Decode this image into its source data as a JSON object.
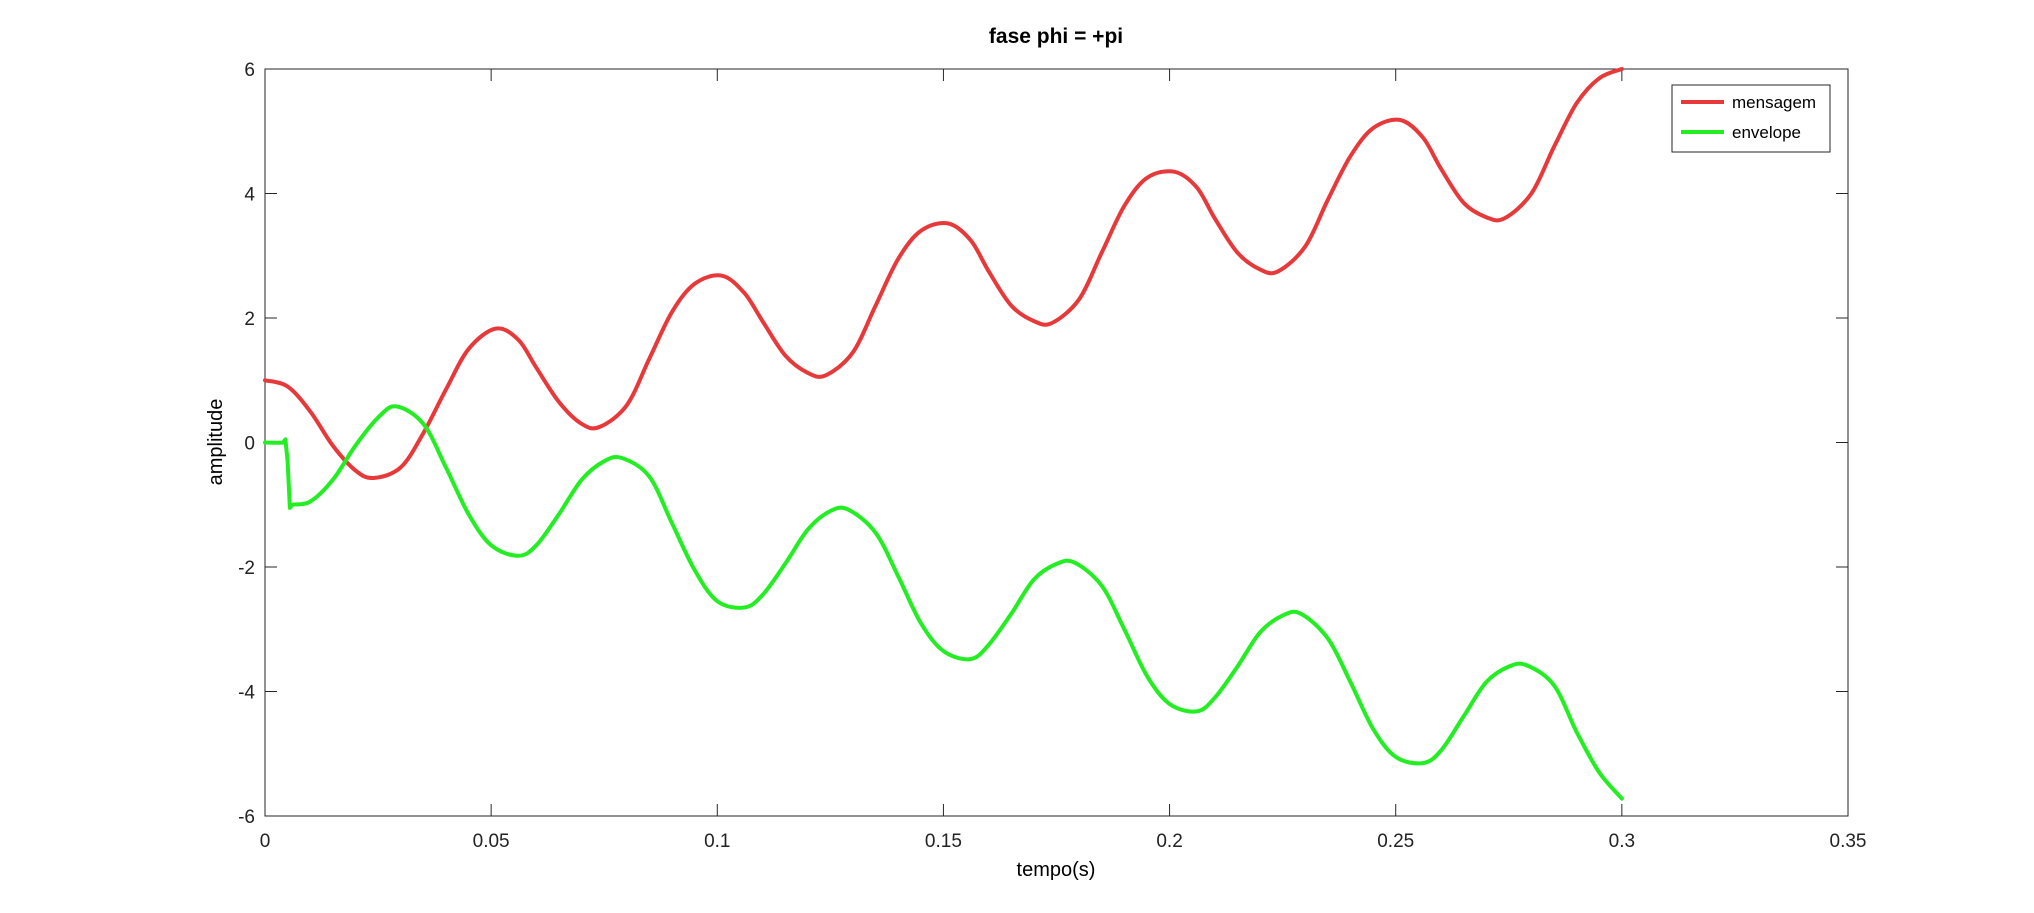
{
  "chart_data": {
    "type": "line",
    "title": "fase phi = +pi",
    "xlabel": "tempo(s)",
    "ylabel": "amplitude",
    "xlim": [
      0,
      0.35
    ],
    "ylim": [
      -6,
      6
    ],
    "xticks": [
      0,
      0.05,
      0.1,
      0.15,
      0.2,
      0.25,
      0.3,
      0.35
    ],
    "xtick_labels": [
      "0",
      "0.05",
      "0.1",
      "0.15",
      "0.2",
      "0.25",
      "0.3",
      "0.35"
    ],
    "yticks": [
      -6,
      -4,
      -2,
      0,
      2,
      4,
      6
    ],
    "ytick_labels": [
      "-6",
      "-4",
      "-2",
      "0",
      "2",
      "4",
      "6"
    ],
    "grid": false,
    "legend_position": "top-right",
    "series": [
      {
        "name": "mensagem",
        "color": "#e8393a",
        "x": [
          0,
          0.005,
          0.01,
          0.015,
          0.02,
          0.024,
          0.03,
          0.035,
          0.04,
          0.045,
          0.051,
          0.056,
          0.06,
          0.065,
          0.07,
          0.074,
          0.08,
          0.085,
          0.09,
          0.095,
          0.101,
          0.106,
          0.11,
          0.115,
          0.12,
          0.124,
          0.13,
          0.135,
          0.14,
          0.145,
          0.151,
          0.156,
          0.16,
          0.165,
          0.17,
          0.174,
          0.18,
          0.185,
          0.19,
          0.195,
          0.201,
          0.206,
          0.21,
          0.215,
          0.22,
          0.224,
          0.23,
          0.235,
          0.24,
          0.245,
          0.251,
          0.256,
          0.26,
          0.265,
          0.27,
          0.274,
          0.28,
          0.285,
          0.29,
          0.295,
          0.3
        ],
        "y": [
          1.0,
          0.9,
          0.5,
          -0.05,
          -0.45,
          -0.57,
          -0.4,
          0.15,
          0.85,
          1.5,
          1.83,
          1.65,
          1.2,
          0.65,
          0.3,
          0.25,
          0.6,
          1.35,
          2.1,
          2.55,
          2.68,
          2.4,
          1.95,
          1.4,
          1.12,
          1.08,
          1.45,
          2.2,
          2.95,
          3.4,
          3.52,
          3.25,
          2.75,
          2.2,
          1.95,
          1.92,
          2.3,
          3.05,
          3.8,
          4.25,
          4.35,
          4.1,
          3.6,
          3.05,
          2.78,
          2.75,
          3.15,
          3.9,
          4.6,
          5.05,
          5.18,
          4.9,
          4.4,
          3.85,
          3.62,
          3.6,
          4.0,
          4.75,
          5.45,
          5.85,
          6.0
        ]
      },
      {
        "name": "envelope",
        "color": "#22ee22",
        "x": [
          0,
          0.004,
          0.0045,
          0.005,
          0.0055,
          0.006,
          0.01,
          0.015,
          0.02,
          0.025,
          0.029,
          0.035,
          0.04,
          0.045,
          0.05,
          0.056,
          0.06,
          0.065,
          0.07,
          0.075,
          0.079,
          0.085,
          0.09,
          0.095,
          0.1,
          0.106,
          0.11,
          0.115,
          0.12,
          0.125,
          0.129,
          0.135,
          0.14,
          0.145,
          0.15,
          0.156,
          0.16,
          0.165,
          0.17,
          0.175,
          0.179,
          0.185,
          0.19,
          0.195,
          0.2,
          0.206,
          0.21,
          0.215,
          0.22,
          0.225,
          0.229,
          0.235,
          0.24,
          0.245,
          0.25,
          0.256,
          0.26,
          0.265,
          0.27,
          0.275,
          0.279,
          0.285,
          0.29,
          0.295,
          0.3
        ],
        "y": [
          0,
          0,
          0.05,
          -0.3,
          -1.05,
          -1.0,
          -0.95,
          -0.6,
          -0.05,
          0.4,
          0.58,
          0.3,
          -0.4,
          -1.15,
          -1.65,
          -1.82,
          -1.65,
          -1.15,
          -0.6,
          -0.3,
          -0.25,
          -0.55,
          -1.3,
          -2.05,
          -2.55,
          -2.65,
          -2.45,
          -1.95,
          -1.4,
          -1.1,
          -1.08,
          -1.45,
          -2.15,
          -2.9,
          -3.35,
          -3.48,
          -3.25,
          -2.75,
          -2.2,
          -1.95,
          -1.93,
          -2.3,
          -3.0,
          -3.75,
          -4.2,
          -4.32,
          -4.1,
          -3.6,
          -3.05,
          -2.78,
          -2.75,
          -3.15,
          -3.85,
          -4.6,
          -5.05,
          -5.15,
          -4.95,
          -4.4,
          -3.85,
          -3.6,
          -3.58,
          -3.9,
          -4.65,
          -5.3,
          -5.72
        ]
      }
    ]
  }
}
